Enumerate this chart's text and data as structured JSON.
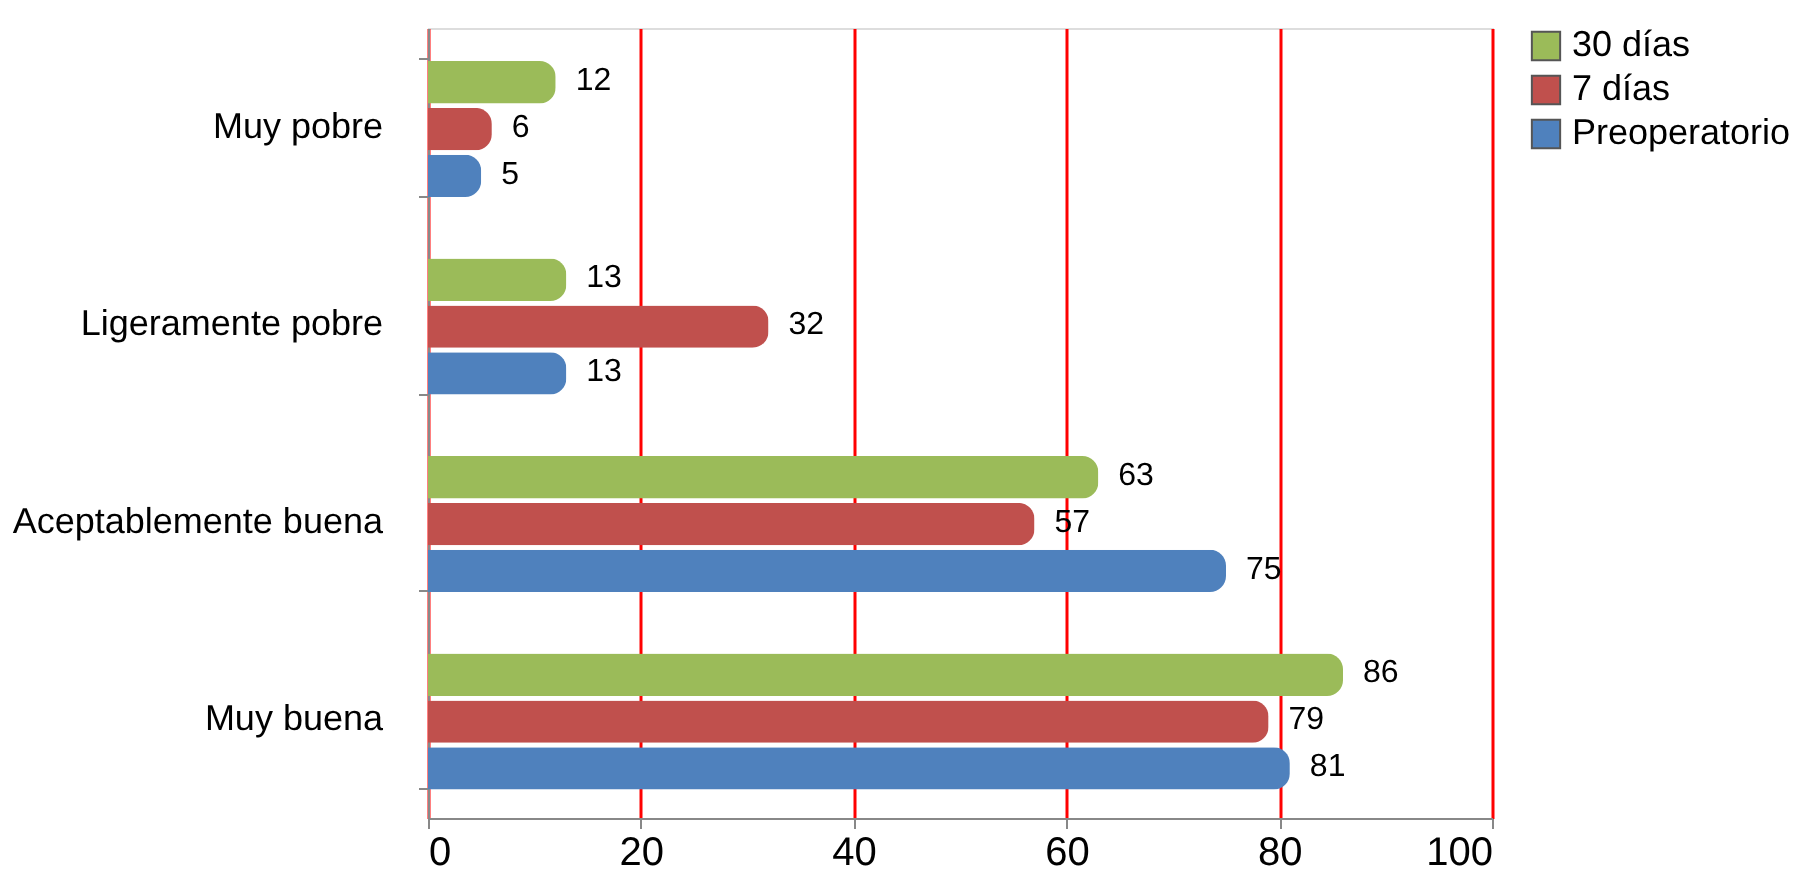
{
  "chart_data": {
    "type": "bar",
    "orientation": "horizontal",
    "categories": [
      "Muy pobre",
      "Ligeramente pobre",
      "Aceptablemente buena",
      "Muy buena"
    ],
    "series": [
      {
        "name": "30 días",
        "color": "#9bbb59",
        "values": [
          12,
          13,
          63,
          86
        ]
      },
      {
        "name": "7 días",
        "color": "#c0504d",
        "values": [
          6,
          32,
          57,
          79
        ]
      },
      {
        "name": "Preoperatorio",
        "color": "#4f81bd",
        "values": [
          5,
          13,
          75,
          81
        ]
      }
    ],
    "xlim": [
      0,
      100
    ],
    "xticks": [
      0,
      20,
      40,
      60,
      80,
      100
    ],
    "grid": "x",
    "legend": "right",
    "data_labels": true
  }
}
